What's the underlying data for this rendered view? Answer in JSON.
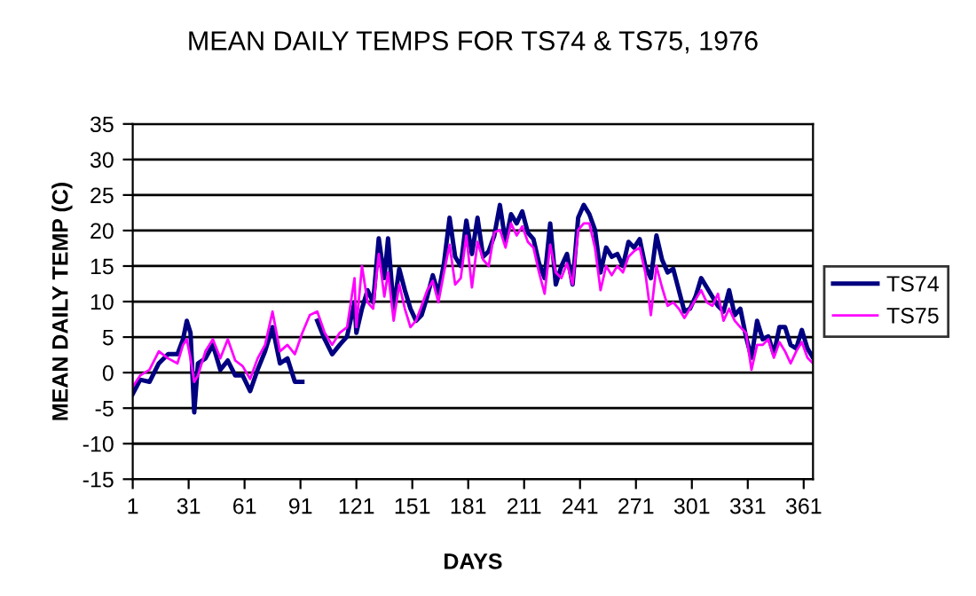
{
  "chart_data": {
    "type": "line",
    "title": "MEAN DAILY TEMPS FOR TS74 & TS75, 1976",
    "xlabel": "DAYS",
    "ylabel": "MEAN DAILY TEMP (C)",
    "x": [
      1,
      5,
      10,
      15,
      20,
      25,
      28,
      30,
      32,
      34,
      36,
      40,
      44,
      48,
      52,
      56,
      60,
      64,
      68,
      72,
      76,
      80,
      84,
      88,
      92,
      96,
      100,
      104,
      108,
      112,
      116,
      120,
      121,
      124,
      127,
      130,
      133,
      136,
      138,
      141,
      144,
      147,
      150,
      153,
      156,
      159,
      162,
      165,
      168,
      171,
      174,
      177,
      180,
      183,
      186,
      189,
      192,
      195,
      198,
      201,
      204,
      207,
      210,
      213,
      216,
      219,
      222,
      225,
      228,
      231,
      234,
      237,
      240,
      243,
      246,
      249,
      252,
      255,
      258,
      261,
      264,
      267,
      270,
      273,
      276,
      279,
      282,
      285,
      288,
      291,
      294,
      297,
      300,
      303,
      306,
      309,
      312,
      315,
      318,
      321,
      324,
      327,
      330,
      333,
      336,
      339,
      342,
      345,
      348,
      351,
      354,
      357,
      360,
      363,
      366
    ],
    "series": [
      {
        "name": "TS74",
        "color": "#000080",
        "values": [
          -3,
          -1,
          -1.3,
          1.3,
          2.6,
          2.6,
          4.7,
          7.3,
          5.6,
          -5.6,
          1.3,
          2,
          3.9,
          0.4,
          1.7,
          -0.4,
          -0.4,
          -2.6,
          0.4,
          3,
          6.4,
          1.3,
          2,
          -1.3,
          -1.3,
          null,
          7.3,
          4.7,
          2.6,
          3.9,
          5.1,
          9.9,
          5.6,
          9,
          11.6,
          9.9,
          18.9,
          13.3,
          18.9,
          9,
          14.6,
          11.6,
          9,
          7.3,
          8.1,
          10.7,
          13.7,
          11.1,
          15.4,
          21.8,
          16.3,
          15,
          21.4,
          16.7,
          21.8,
          16.3,
          17.1,
          19.3,
          23.6,
          18.4,
          22.3,
          21,
          22.7,
          19.7,
          18.8,
          15.4,
          13.3,
          21,
          12.4,
          15,
          16.7,
          12.4,
          21.8,
          23.6,
          22.3,
          20.1,
          14.1,
          17.6,
          16.3,
          16.7,
          15,
          18.4,
          17.6,
          18.8,
          15,
          13.3,
          19.3,
          15.9,
          14.1,
          14.6,
          11.6,
          8.6,
          9,
          10.7,
          13.3,
          12,
          10.7,
          9.4,
          8.6,
          11.6,
          8.1,
          9,
          5.1,
          2.1,
          7.3,
          4.7,
          5.1,
          2.6,
          6.4,
          6.4,
          3.9,
          3.4,
          6,
          3.4,
          2.1
        ]
      },
      {
        "name": "TS75",
        "color": "#ff00ff",
        "values": [
          -2,
          -0.4,
          0.4,
          3,
          2,
          1.3,
          3.9,
          4.7,
          2,
          -1.3,
          -0.4,
          3,
          4.7,
          2,
          4.7,
          1.7,
          0.9,
          -0.9,
          2,
          3.9,
          8.6,
          3,
          3.9,
          2.6,
          5.6,
          8.1,
          8.6,
          5.6,
          3.9,
          5.6,
          6.4,
          13.3,
          6.4,
          15,
          9.9,
          9,
          16.7,
          10.7,
          14.1,
          7.3,
          12.4,
          9,
          6.4,
          7.3,
          9.4,
          11.6,
          12.9,
          9.9,
          14.1,
          18,
          12.4,
          13.3,
          19.3,
          12,
          18.4,
          15.9,
          15,
          19.7,
          20.1,
          17.6,
          21,
          19.3,
          20.6,
          18.4,
          17.6,
          14.1,
          11.1,
          18,
          14.1,
          13.3,
          15.4,
          12.4,
          20.1,
          21,
          21,
          17.6,
          11.6,
          15,
          13.7,
          15,
          14.1,
          16.3,
          17.1,
          17.6,
          14.1,
          8.1,
          15,
          12,
          9.4,
          9.9,
          9,
          7.7,
          9,
          10.3,
          11.6,
          9.9,
          9.4,
          11.1,
          7.3,
          9,
          7.3,
          6.4,
          5.6,
          0.4,
          3.9,
          3.9,
          4.7,
          2.1,
          4.3,
          3,
          1.3,
          3,
          4.3,
          2.1,
          1.3
        ]
      }
    ],
    "xlim": [
      1,
      366
    ],
    "xticks": [
      1,
      31,
      61,
      91,
      121,
      151,
      181,
      211,
      241,
      271,
      301,
      331,
      361
    ],
    "ylim": [
      -15,
      35
    ],
    "yticks": [
      -15,
      -10,
      -5,
      0,
      5,
      10,
      15,
      20,
      25,
      30,
      35
    ],
    "grid": "y",
    "legend": "right",
    "marker": "none",
    "line_style": "solid"
  }
}
